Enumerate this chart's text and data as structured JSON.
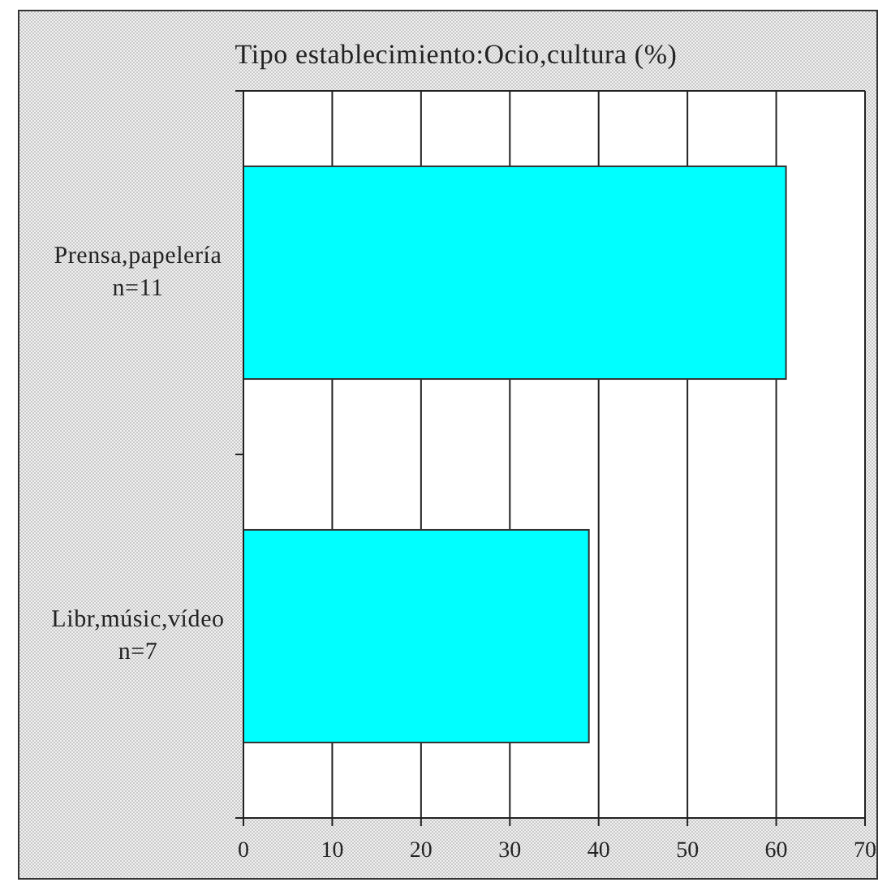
{
  "chart_data": {
    "type": "bar",
    "orientation": "horizontal",
    "title": "Tipo establecimiento:Ocio,cultura (%)",
    "categories": [
      "Prensa,papelería\nn=11",
      "Libr,músic,vídeo\nn=7"
    ],
    "values": [
      61.1,
      38.9
    ],
    "color": "#00ffff",
    "xlim": [
      0,
      70
    ],
    "xticks": [
      0,
      10,
      20,
      30,
      40,
      50,
      60,
      70
    ],
    "grid": "x"
  }
}
